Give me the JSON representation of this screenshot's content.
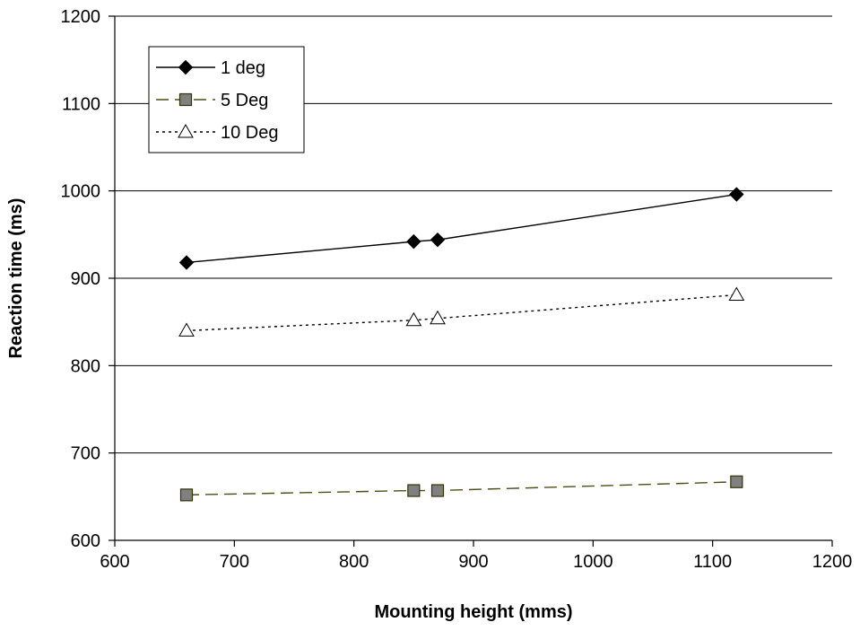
{
  "chart_data": {
    "type": "line",
    "title": "",
    "xlabel": "Mounting height (mms)",
    "ylabel": "Reaction time (ms)",
    "xlim": [
      600,
      1200
    ],
    "ylim": [
      600,
      1200
    ],
    "x_ticks": [
      600,
      700,
      800,
      900,
      1000,
      1100,
      1200
    ],
    "y_ticks": [
      600,
      700,
      800,
      900,
      1000,
      1100,
      1200
    ],
    "grid": "horizontal major gridlines",
    "legend_position": "top-left",
    "series": [
      {
        "name": "1 deg",
        "marker": "diamond",
        "line_style": "solid",
        "marker_fill": "#000000",
        "line_color": "#000000",
        "x": [
          660,
          850,
          870,
          1120
        ],
        "y": [
          918,
          942,
          944,
          996
        ]
      },
      {
        "name": "5 Deg",
        "marker": "square",
        "line_style": "dashed",
        "marker_fill": "#808080",
        "line_color": "#4d4d1a",
        "x": [
          660,
          850,
          870,
          1120
        ],
        "y": [
          652,
          657,
          657,
          667
        ]
      },
      {
        "name": "10 Deg",
        "marker": "triangle",
        "line_style": "dotted",
        "marker_fill": "#ffffff",
        "line_color": "#000000",
        "x": [
          660,
          850,
          870,
          1120
        ],
        "y": [
          840,
          852,
          854,
          881
        ]
      }
    ]
  }
}
